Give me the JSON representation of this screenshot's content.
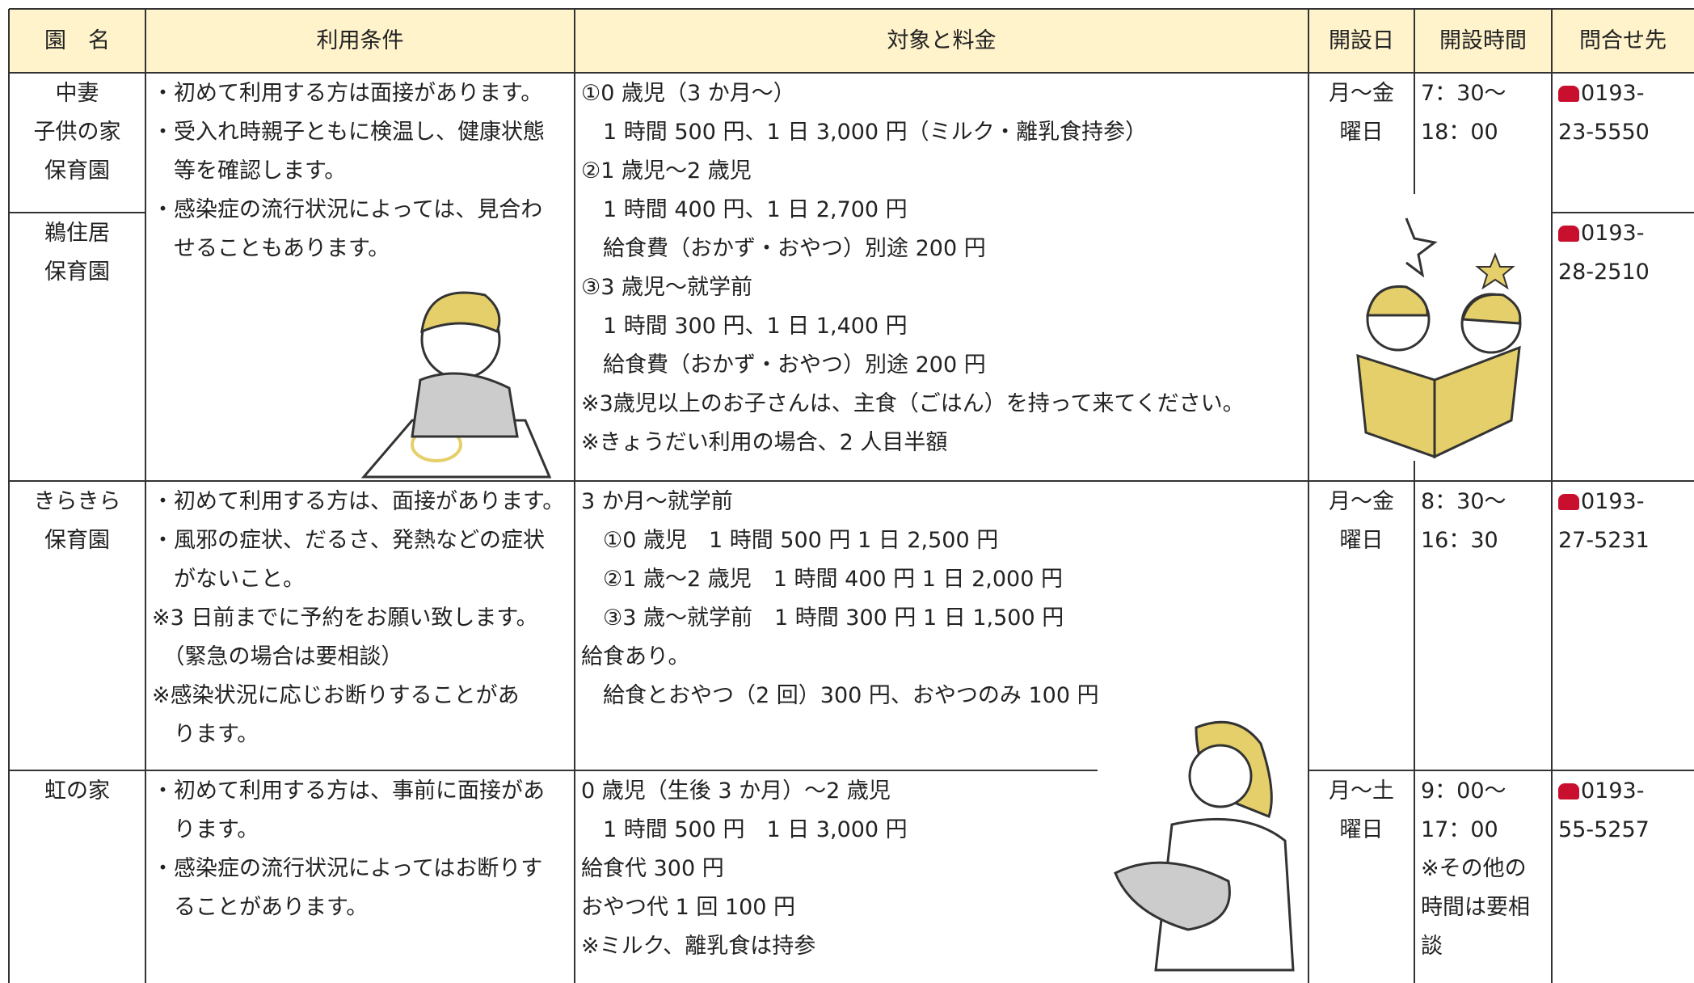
{
  "table": {
    "header": [
      "園　名",
      "利用条件",
      "対象と料金",
      "開設日",
      "開設時間",
      "問合せ先"
    ],
    "rows": [
      {
        "facilities": [
          {
            "name": [
              "中妻",
              "子供の家",
              "保育園"
            ],
            "contact": [
              "0193-",
              "23-5550"
            ]
          },
          {
            "name": [
              "鵜住居",
              "保育園"
            ],
            "contact": [
              "0193-",
              "28-2510"
            ]
          }
        ],
        "conditions": [
          "・初めて利用する方は面接があります。",
          "・受入れ時親子ともに検温し、健康状態",
          "　等を確認します。",
          "・感染症の流行状況によっては、見合わ",
          "　せることもあります。"
        ],
        "fees": [
          "①0 歳児（3 か月～）",
          "　1 時間 500 円、1 日 3,000 円（ミルク・離乳食持参）",
          "②1 歳児～2 歳児",
          "　1 時間 400 円、1 日 2,700 円",
          "　給食費（おかず・おやつ）別途 200 円",
          "③3 歳児～就学前",
          "　1 時間 300 円、1 日 1,400 円",
          "　給食費（おかず・おやつ）別途 200 円",
          "※3歳児以上のお子さんは、主食（ごはん）を持って来てください。",
          "※きょうだい利用の場合、2 人目半額"
        ],
        "days": [
          "月～金",
          "曜日"
        ],
        "hours": [
          "7：30～",
          "18：00"
        ]
      },
      {
        "facilities": [
          {
            "name": [
              "きらきら",
              "保育園"
            ],
            "contact": [
              "0193-",
              "27-5231"
            ]
          }
        ],
        "conditions": [
          "・初めて利用する方は、面接があります。",
          "・風邪の症状、だるさ、発熱などの症状",
          "　がないこと。",
          "※3 日前までに予約をお願い致します。",
          "　（緊急の場合は要相談）",
          "※感染状況に応じお断りすることがあ",
          "　ります。"
        ],
        "fees": [
          "3 か月～就学前",
          "　①0 歳児　1 時間 500 円 1 日 2,500 円",
          "　②1 歳～2 歳児　1 時間 400 円 1 日 2,000 円",
          "　③3 歳～就学前　1 時間 300 円 1 日 1,500 円",
          "給食あり。",
          "　給食とおやつ（2 回）300 円、おやつのみ 100 円"
        ],
        "days": [
          "月～金",
          "曜日"
        ],
        "hours": [
          "8：30～",
          "16：30"
        ]
      },
      {
        "facilities": [
          {
            "name": [
              "虹の家"
            ],
            "contact": [
              "0193-",
              "55-5257"
            ]
          }
        ],
        "conditions": [
          "・初めて利用する方は、事前に面接があ",
          "　ります。",
          "・感染症の流行状況によってはお断りす",
          "　ることがあります。"
        ],
        "fees": [
          "0 歳児（生後 3 か月）～2 歳児",
          "　1 時間 500 円　1 日 3,000 円",
          "給食代 300 円",
          "おやつ代 1 回 100 円",
          "※ミルク、離乳食は持参"
        ],
        "days": [
          "月～土",
          "曜日"
        ],
        "hours": [
          "9：00～",
          "17：00",
          "※その他の",
          "時間は要相",
          "談"
        ]
      }
    ]
  }
}
